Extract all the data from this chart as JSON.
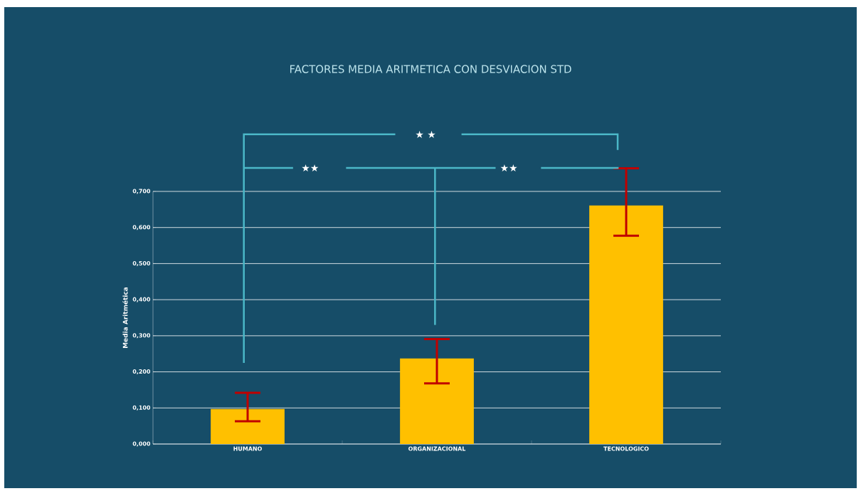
{
  "chart_data": {
    "type": "bar",
    "title": "FACTORES MEDIA ARITMETICA CON DESVIACION STD",
    "ylabel": "Media Aritmética",
    "categories": [
      "HUMANO",
      "ORGANIZACIONAL",
      "TECNOLOGICO"
    ],
    "values": [
      0.097,
      0.237,
      0.661
    ],
    "errors": [
      [
        0.063,
        0.142
      ],
      [
        0.168,
        0.291
      ],
      [
        0.577,
        0.764
      ]
    ],
    "color": "#ffc000",
    "ylim": [
      0,
      0.7
    ],
    "yticks": [
      {
        "value": 0,
        "label": "0,000"
      },
      {
        "value": 0.1,
        "label": "0,100"
      },
      {
        "value": 0.2,
        "label": "0,200"
      },
      {
        "value": 0.3,
        "label": "0,300"
      },
      {
        "value": 0.4,
        "label": "0,400"
      },
      {
        "value": 0.5,
        "label": "0,500"
      },
      {
        "value": 0.6,
        "label": "0,600"
      },
      {
        "value": 0.7,
        "label": "0,700"
      }
    ],
    "grid": "y",
    "annotations": [
      "★ ★",
      "★★",
      "★★"
    ]
  }
}
